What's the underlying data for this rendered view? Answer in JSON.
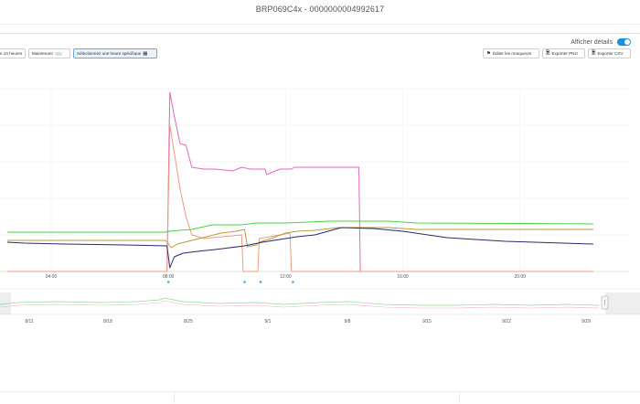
{
  "header": {
    "title": "BRP069C4x - 0000000004992617"
  },
  "toolbar": {
    "btn_24h": "e 24 heures",
    "btn_now": "Maintenant",
    "btn_specific": "Sélectionnez une heure spécifique",
    "btn_markers": "Éditer les marqueurs",
    "btn_png": "Exporter PNG",
    "btn_csv": "Exporter CSV",
    "details_label": "Afficher détails"
  },
  "icons": {
    "calendar": "calendar-icon",
    "flag": "flag-icon",
    "file": "file-icon",
    "toggle": "toggle-switch"
  },
  "colors": {
    "pink": "#e26ab8",
    "salmon": "#ef9b7d",
    "green": "#43d343",
    "gold": "#b59b3b",
    "navy": "#2a2a72",
    "marker": "#4aa8e0",
    "accent": "#1a8fdd"
  },
  "chart_data": {
    "type": "line",
    "x_ticks": [
      "04:00",
      "08:00",
      "12:00",
      "16:00",
      "20:00"
    ],
    "navigator_ticks": [
      "8/11",
      "8/18",
      "8/25",
      "9/1",
      "9/8",
      "9/15",
      "9/22",
      "9/29"
    ],
    "markers_hours": [
      8.0,
      10.6,
      11.15,
      12.25
    ],
    "series": [
      {
        "color": "#e26ab8",
        "points": [
          [
            2.5,
            0
          ],
          [
            7.95,
            0
          ],
          [
            8.05,
            98
          ],
          [
            8.2,
            85
          ],
          [
            8.4,
            70
          ],
          [
            8.6,
            69
          ],
          [
            8.8,
            57
          ],
          [
            9.2,
            56
          ],
          [
            9.6,
            56
          ],
          [
            10.2,
            55
          ],
          [
            10.5,
            57
          ],
          [
            10.8,
            56
          ],
          [
            11.3,
            56
          ],
          [
            11.35,
            53
          ],
          [
            11.8,
            56
          ],
          [
            12.2,
            56
          ],
          [
            12.3,
            57
          ],
          [
            13.0,
            57
          ],
          [
            14.5,
            57
          ],
          [
            14.55,
            0
          ],
          [
            22.5,
            0
          ]
        ]
      },
      {
        "color": "#ef9b7d",
        "points": [
          [
            2.5,
            0
          ],
          [
            7.95,
            0
          ],
          [
            8.05,
            80
          ],
          [
            8.2,
            65
          ],
          [
            8.4,
            45
          ],
          [
            8.6,
            30
          ],
          [
            8.8,
            20
          ],
          [
            9.2,
            18
          ],
          [
            10.5,
            20
          ],
          [
            10.55,
            0
          ],
          [
            11.05,
            0
          ],
          [
            11.1,
            18
          ],
          [
            12.15,
            21
          ],
          [
            12.2,
            0
          ],
          [
            22.5,
            0
          ]
        ]
      },
      {
        "color": "#43d343",
        "points": [
          [
            2.5,
            21.5
          ],
          [
            7.9,
            21.5
          ],
          [
            8.0,
            22
          ],
          [
            8.8,
            23
          ],
          [
            9.5,
            25.5
          ],
          [
            10.5,
            25.5
          ],
          [
            11.0,
            26.5
          ],
          [
            12.0,
            26.5
          ],
          [
            13.5,
            27.5
          ],
          [
            15.5,
            27.5
          ],
          [
            16.5,
            26.5
          ],
          [
            22.5,
            26
          ]
        ]
      },
      {
        "color": "#b59b3b",
        "points": [
          [
            2.5,
            17
          ],
          [
            7.9,
            17
          ],
          [
            8.1,
            13
          ],
          [
            8.3,
            15
          ],
          [
            8.8,
            17
          ],
          [
            9.3,
            19
          ],
          [
            9.8,
            21
          ],
          [
            10.3,
            22
          ],
          [
            10.6,
            23
          ],
          [
            10.7,
            13.5
          ],
          [
            11.0,
            14.5
          ],
          [
            11.1,
            16
          ],
          [
            11.5,
            18
          ],
          [
            12.0,
            21
          ],
          [
            12.4,
            22
          ],
          [
            13.0,
            22.5
          ],
          [
            13.8,
            24
          ],
          [
            15.5,
            24
          ],
          [
            16.5,
            23
          ],
          [
            22.5,
            23
          ]
        ]
      },
      {
        "color": "#2a2a72",
        "points": [
          [
            2.5,
            16
          ],
          [
            3.1,
            15.5
          ],
          [
            4.5,
            15
          ],
          [
            6.5,
            14.5
          ],
          [
            7.95,
            14
          ],
          [
            8.05,
            2
          ],
          [
            8.2,
            8
          ],
          [
            8.5,
            10
          ],
          [
            9.0,
            11
          ],
          [
            9.6,
            12
          ],
          [
            10.1,
            13
          ],
          [
            10.6,
            14
          ],
          [
            11.2,
            16
          ],
          [
            11.8,
            17.5
          ],
          [
            12.4,
            19
          ],
          [
            13.0,
            20
          ],
          [
            13.9,
            24
          ],
          [
            15.0,
            23.5
          ],
          [
            16.0,
            22
          ],
          [
            17.5,
            18.5
          ],
          [
            19.5,
            16.5
          ],
          [
            22.5,
            15
          ]
        ]
      }
    ]
  }
}
